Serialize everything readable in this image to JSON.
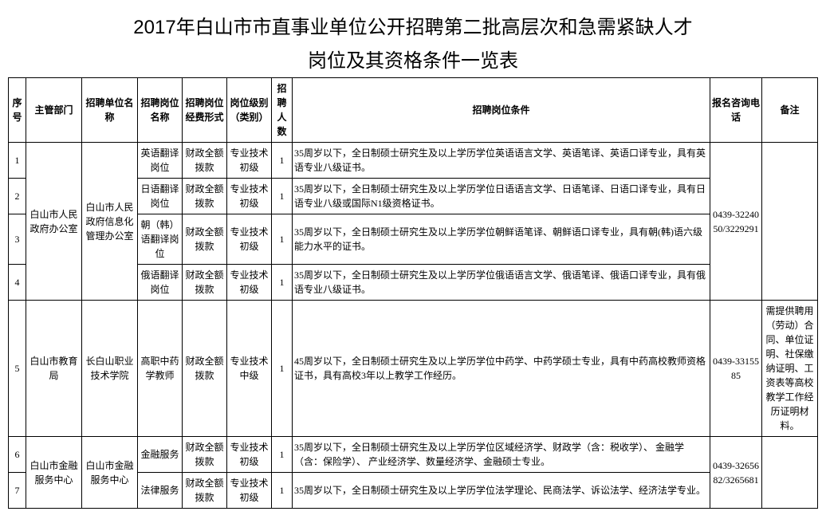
{
  "title_line1": "2017年白山市市直事业单位公开招聘第二批高层次和急需紧缺人才",
  "title_line2": "岗位及其资格条件一览表",
  "headers": {
    "seq": "序号",
    "dept": "主管部门",
    "unit": "招聘单位名称",
    "pos": "招聘岗位名称",
    "fund": "招聘岗位经费形式",
    "level": "岗位级别（类别）",
    "num": "招聘人数",
    "req": "招聘岗位条件",
    "phone": "报名咨询电话",
    "note": "备注"
  },
  "groups": [
    {
      "dept": "白山市人民政府办公室",
      "unit": "白山市人民政府信息化管理办公室",
      "phone": "0439-3224050/3229291",
      "note": "",
      "rows": [
        {
          "seq": "1",
          "pos": "英语翻译岗位",
          "fund": "财政全额拨款",
          "level": "专业技术初级",
          "num": "1",
          "req": "35周岁以下，全日制硕士研究生及以上学历学位英语语言文学、英语笔译、英语口译专业，具有英语专业八级证书。"
        },
        {
          "seq": "2",
          "pos": "日语翻译岗位",
          "fund": "财政全额拨款",
          "level": "专业技术初级",
          "num": "1",
          "req": "35周岁以下，全日制硕士研究生及以上学历学位日语语言文学、日语笔译、日语口译专业，具有日语专业八级或国际N1级资格证书。"
        },
        {
          "seq": "3",
          "pos": "朝（韩）语翻译岗位",
          "fund": "财政全额拨款",
          "level": "专业技术初级",
          "num": "1",
          "req": "35周岁以下，全日制硕士研究生及以上学历学位朝鲜语笔译、朝鲜语口译专业，具有朝(韩)语六级能力水平的证书。"
        },
        {
          "seq": "4",
          "pos": "俄语翻译岗位",
          "fund": "财政全额拨款",
          "level": "专业技术初级",
          "num": "1",
          "req": "35周岁以下，全日制硕士研究生及以上学历学位俄语语言文学、俄语笔译、俄语口译专业，具有俄语专业八级证书。"
        }
      ]
    },
    {
      "dept": "白山市教育局",
      "unit": "长白山职业技术学院",
      "phone": "0439-3315585",
      "note": "需提供聘用（劳动）合同、单位证明、社保缴纳证明、工资表等高校教学工作经历证明材料。",
      "rows": [
        {
          "seq": "5",
          "pos": "高职中药学教师",
          "fund": "财政全额拨款",
          "level": "专业技术中级",
          "num": "1",
          "req": "45周岁以下，全日制硕士研究生及以上学历学位中药学、中药学硕士专业，具有中药高校教师资格证书，具有高校3年以上教学工作经历。"
        }
      ]
    },
    {
      "dept": "白山市金融服务中心",
      "unit": "白山市金融服务中心",
      "phone": "0439-3265682/3265681",
      "note": "",
      "rows": [
        {
          "seq": "6",
          "pos": "金融服务",
          "fund": "财政全额拨款",
          "level": "专业技术初级",
          "num": "1",
          "req": "35周岁以下，全日制硕士研究生及以上学历学位区域经济学、财政学（含：税收学）、 金融学（含：保险学）、 产业经济学、数量经济学、金融硕士专业。"
        },
        {
          "seq": "7",
          "pos": "法律服务",
          "fund": "财政全额拨款",
          "level": "专业技术初级",
          "num": "1",
          "req": "35周岁以下，全日制硕士研究生及以上学历学位法学理论、民商法学、诉讼法学、经济法学专业。"
        }
      ]
    }
  ]
}
